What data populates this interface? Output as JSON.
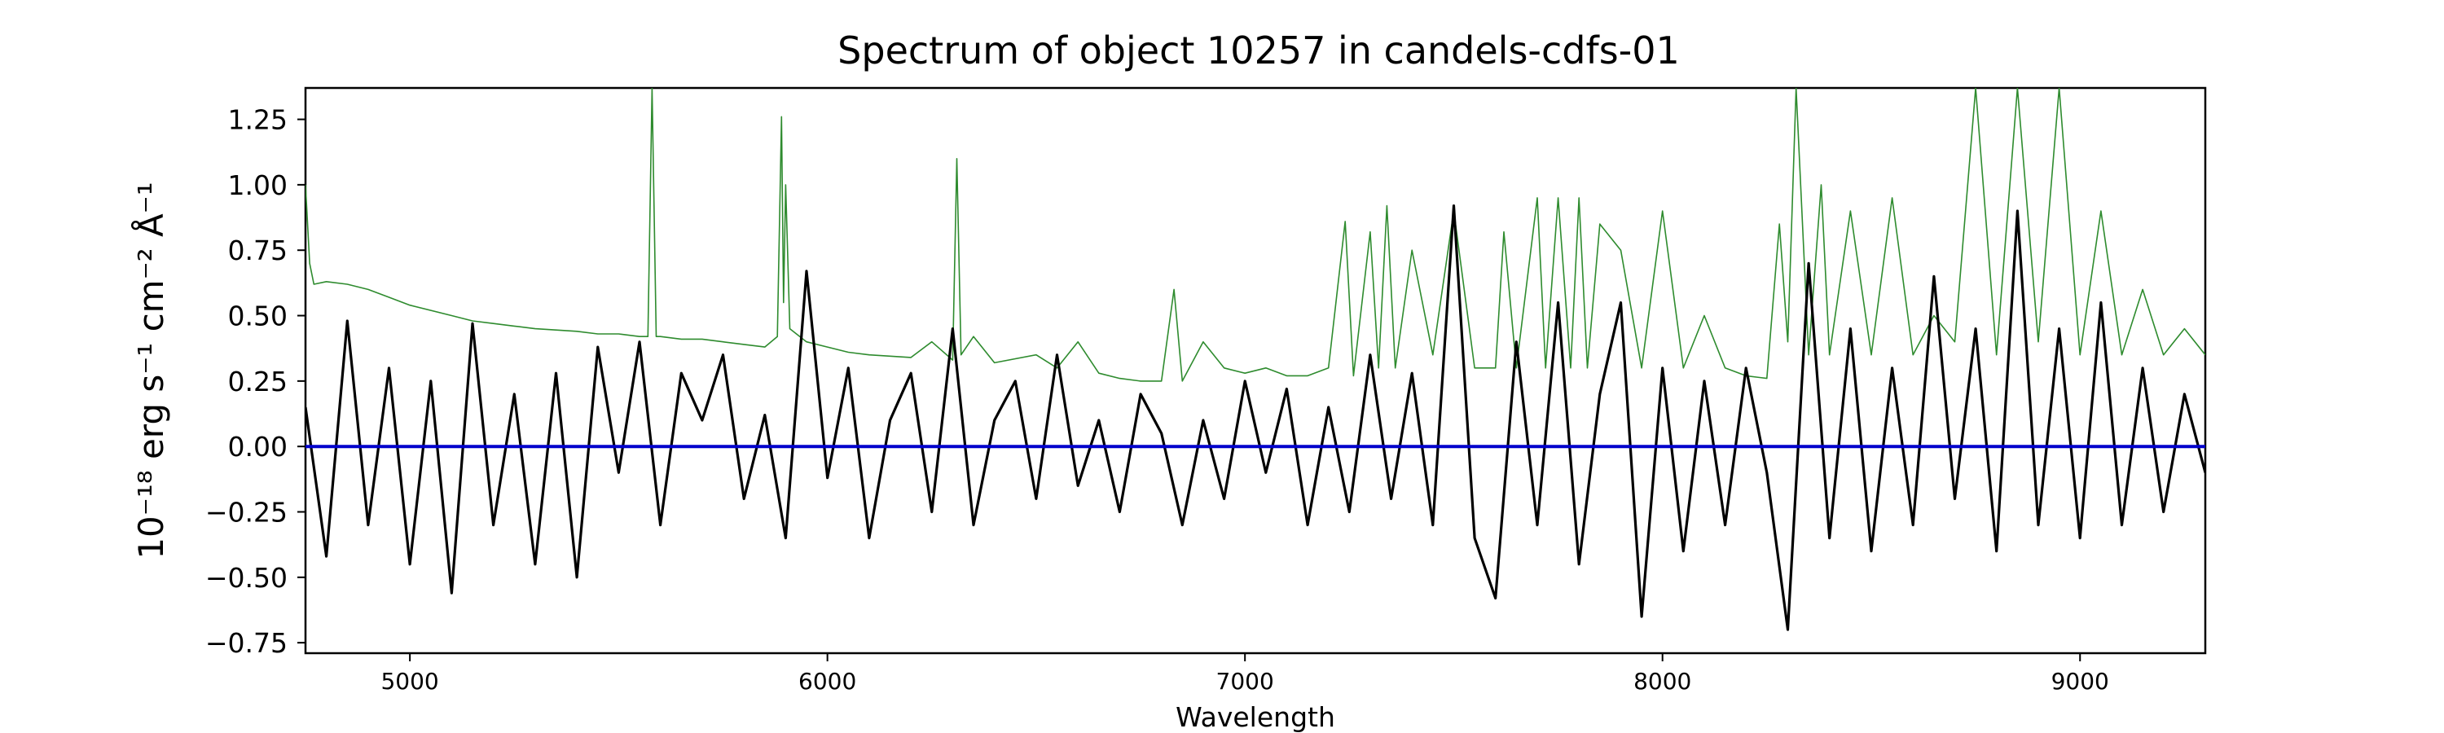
{
  "chart_data": {
    "type": "line",
    "title": "Spectrum of object 10257 in candels-cdfs-01",
    "xlabel": "Wavelength",
    "ylabel": "10⁻¹⁸ erg s⁻¹ cm⁻² Å⁻¹",
    "xlim": [
      4750,
      9300
    ],
    "ylim": [
      -0.79,
      1.37
    ],
    "x_ticks": [
      5000,
      6000,
      7000,
      8000,
      9000
    ],
    "y_ticks": [
      -0.75,
      -0.5,
      -0.25,
      0.0,
      0.25,
      0.5,
      0.75,
      1.0,
      1.25
    ],
    "x_tick_labels": [
      "5000",
      "6000",
      "7000",
      "8000",
      "9000"
    ],
    "y_tick_labels": [
      "−0.75",
      "−0.50",
      "−0.25",
      "0.00",
      "0.25",
      "0.50",
      "0.75",
      "1.00",
      "1.25"
    ],
    "grid": false,
    "series": [
      {
        "role": "flux",
        "color": "#000000",
        "x": [
          4750,
          4800,
          4850,
          4900,
          4950,
          5000,
          5050,
          5100,
          5150,
          5200,
          5250,
          5300,
          5350,
          5400,
          5450,
          5500,
          5550,
          5600,
          5650,
          5700,
          5750,
          5800,
          5850,
          5900,
          5950,
          6000,
          6050,
          6100,
          6150,
          6200,
          6250,
          6300,
          6350,
          6400,
          6450,
          6500,
          6550,
          6600,
          6650,
          6700,
          6750,
          6800,
          6850,
          6900,
          6950,
          7000,
          7050,
          7100,
          7150,
          7200,
          7250,
          7300,
          7350,
          7400,
          7450,
          7500,
          7550,
          7600,
          7650,
          7700,
          7750,
          7800,
          7850,
          7900,
          7950,
          8000,
          8050,
          8100,
          8150,
          8200,
          8250,
          8300,
          8350,
          8400,
          8450,
          8500,
          8550,
          8600,
          8650,
          8700,
          8750,
          8800,
          8850,
          8900,
          8950,
          9000,
          9050,
          9100,
          9150,
          9200,
          9250,
          9300
        ],
        "y": [
          0.15,
          -0.42,
          0.48,
          -0.3,
          0.3,
          -0.45,
          0.25,
          -0.56,
          0.47,
          -0.3,
          0.2,
          -0.45,
          0.28,
          -0.5,
          0.38,
          -0.1,
          0.4,
          -0.3,
          0.28,
          0.1,
          0.35,
          -0.2,
          0.12,
          -0.35,
          0.67,
          -0.12,
          0.3,
          -0.35,
          0.1,
          0.28,
          -0.25,
          0.45,
          -0.3,
          0.1,
          0.25,
          -0.2,
          0.35,
          -0.15,
          0.1,
          -0.25,
          0.2,
          0.05,
          -0.3,
          0.1,
          -0.2,
          0.25,
          -0.1,
          0.22,
          -0.3,
          0.15,
          -0.25,
          0.35,
          -0.2,
          0.28,
          -0.3,
          0.92,
          -0.35,
          -0.58,
          0.4,
          -0.3,
          0.55,
          -0.45,
          0.2,
          0.55,
          -0.65,
          0.3,
          -0.4,
          0.25,
          -0.3,
          0.3,
          -0.1,
          -0.7,
          0.7,
          -0.35,
          0.45,
          -0.4,
          0.3,
          -0.3,
          0.65,
          -0.2,
          0.45,
          -0.4,
          0.9,
          -0.3,
          0.45,
          -0.35,
          0.55,
          -0.3,
          0.3,
          -0.25,
          0.2,
          -0.1
        ]
      },
      {
        "role": "error",
        "color": "#2e8b2e",
        "x": [
          4750,
          4760,
          4770,
          4800,
          4850,
          4900,
          4950,
          5000,
          5100,
          5150,
          5200,
          5250,
          5300,
          5400,
          5450,
          5500,
          5550,
          5570,
          5580,
          5590,
          5600,
          5650,
          5700,
          5750,
          5800,
          5850,
          5880,
          5890,
          5895,
          5900,
          5910,
          5950,
          6000,
          6050,
          6100,
          6200,
          6250,
          6300,
          6310,
          6320,
          6350,
          6400,
          6500,
          6550,
          6600,
          6650,
          6700,
          6750,
          6800,
          6830,
          6850,
          6900,
          6950,
          7000,
          7050,
          7100,
          7150,
          7200,
          7240,
          7260,
          7300,
          7320,
          7340,
          7360,
          7400,
          7450,
          7500,
          7550,
          7600,
          7620,
          7650,
          7700,
          7720,
          7750,
          7780,
          7800,
          7820,
          7850,
          7900,
          7950,
          8000,
          8050,
          8100,
          8150,
          8200,
          8250,
          8280,
          8300,
          8320,
          8350,
          8380,
          8400,
          8450,
          8500,
          8550,
          8600,
          8650,
          8700,
          8750,
          8800,
          8850,
          8900,
          8950,
          9000,
          9050,
          9100,
          9150,
          9200,
          9250,
          9300
        ],
        "y": [
          1.0,
          0.7,
          0.62,
          0.63,
          0.62,
          0.6,
          0.57,
          0.54,
          0.5,
          0.48,
          0.47,
          0.46,
          0.45,
          0.44,
          0.43,
          0.43,
          0.42,
          0.42,
          1.37,
          0.42,
          0.42,
          0.41,
          0.41,
          0.4,
          0.39,
          0.38,
          0.42,
          1.26,
          0.55,
          1.0,
          0.45,
          0.4,
          0.38,
          0.36,
          0.35,
          0.34,
          0.4,
          0.33,
          1.1,
          0.35,
          0.42,
          0.32,
          0.35,
          0.3,
          0.4,
          0.28,
          0.26,
          0.25,
          0.25,
          0.6,
          0.25,
          0.4,
          0.3,
          0.28,
          0.3,
          0.27,
          0.27,
          0.3,
          0.86,
          0.27,
          0.82,
          0.3,
          0.92,
          0.3,
          0.75,
          0.35,
          0.9,
          0.3,
          0.3,
          0.82,
          0.3,
          0.95,
          0.3,
          0.95,
          0.3,
          0.95,
          0.3,
          0.85,
          0.75,
          0.3,
          0.9,
          0.3,
          0.5,
          0.3,
          0.27,
          0.26,
          0.85,
          0.4,
          1.37,
          0.35,
          1.0,
          0.35,
          0.9,
          0.35,
          0.95,
          0.35,
          0.5,
          0.4,
          1.37,
          0.35,
          1.37,
          0.4,
          1.37,
          0.35,
          0.9,
          0.35,
          0.6,
          0.35,
          0.45,
          0.35
        ]
      },
      {
        "role": "zero",
        "color": "#0000cc",
        "x": [
          4750,
          9300
        ],
        "y": [
          0,
          0
        ]
      }
    ]
  }
}
